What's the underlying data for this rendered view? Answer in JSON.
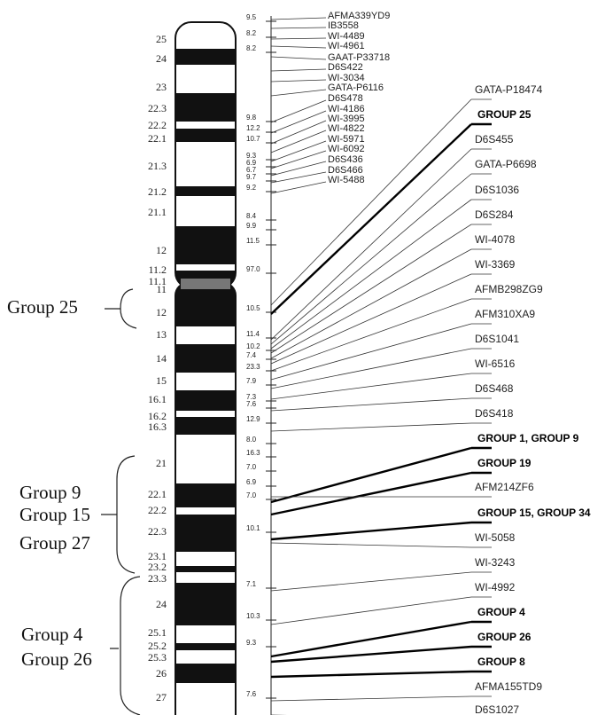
{
  "bands": [
    "25",
    "24",
    "23",
    "22.3",
    "22.2",
    "22.1",
    "21.3",
    "21.2",
    "21.1",
    "12",
    "11.2",
    "11.1",
    "11",
    "12",
    "13",
    "14",
    "15",
    "16.1",
    "16.2",
    "16.3",
    "21",
    "22.1",
    "22.2",
    "22.3",
    "23.1",
    "23.2",
    "23.3",
    "24",
    "25.1",
    "25.2",
    "25.3",
    "26",
    "27"
  ],
  "groups": [
    "Group 25",
    "Group 9",
    "Group 15",
    "Group 27",
    "Group 4",
    "Group 26"
  ],
  "distances": [
    "9.5",
    "8.2",
    "8.2",
    "9.8",
    "12.2",
    "10.7",
    "9.3",
    "6.9",
    "6.7",
    "9.7",
    "9.2",
    "8.4",
    "9.9",
    "11.5",
    "97.0",
    "10.5",
    "11.4",
    "10.2",
    "7.4",
    "23.3",
    "7.9",
    "7.3",
    "7.6",
    "12.9",
    "8.0",
    "16.3",
    "7.0",
    "6.9",
    "7.0",
    "10.1",
    "7.1",
    "10.3",
    "9.3",
    "7.6"
  ],
  "top_markers": [
    "AFMA339YD9",
    "IB3558",
    "WI-4489",
    "WI-4961",
    "GAAT-P33718",
    "D6S422",
    "WI-3034",
    "GATA-P6116",
    "D6S478",
    "WI-4186",
    "WI-3995",
    "WI-4822",
    "WI-5971",
    "WI-6092",
    "D6S436",
    "D6S466",
    "WI-5488"
  ],
  "markers": [
    {
      "label": "GATA-P18474",
      "bold": false
    },
    {
      "label": "GROUP 25",
      "bold": true
    },
    {
      "label": "D6S455",
      "bold": false
    },
    {
      "label": "GATA-P6698",
      "bold": false
    },
    {
      "label": "D6S1036",
      "bold": false
    },
    {
      "label": "D6S284",
      "bold": false
    },
    {
      "label": "WI-4078",
      "bold": false
    },
    {
      "label": "WI-3369",
      "bold": false
    },
    {
      "label": "AFMB298ZG9",
      "bold": false
    },
    {
      "label": "AFM310XA9",
      "bold": false
    },
    {
      "label": "D6S1041",
      "bold": false
    },
    {
      "label": "WI-6516",
      "bold": false
    },
    {
      "label": "D6S468",
      "bold": false
    },
    {
      "label": "D6S418",
      "bold": false
    },
    {
      "label": "GROUP 1, GROUP 9",
      "bold": true
    },
    {
      "label": "GROUP 19",
      "bold": true
    },
    {
      "label": "AFM214ZF6",
      "bold": false
    },
    {
      "label": "GROUP 15, GROUP 34",
      "bold": true
    },
    {
      "label": "WI-5058",
      "bold": false
    },
    {
      "label": "WI-3243",
      "bold": false
    },
    {
      "label": "WI-4992",
      "bold": false
    },
    {
      "label": "GROUP 4",
      "bold": true
    },
    {
      "label": "GROUP 26",
      "bold": true
    },
    {
      "label": "GROUP 8",
      "bold": true
    },
    {
      "label": "AFMA155TD9",
      "bold": false
    },
    {
      "label": "D6S1027",
      "bold": false
    }
  ]
}
